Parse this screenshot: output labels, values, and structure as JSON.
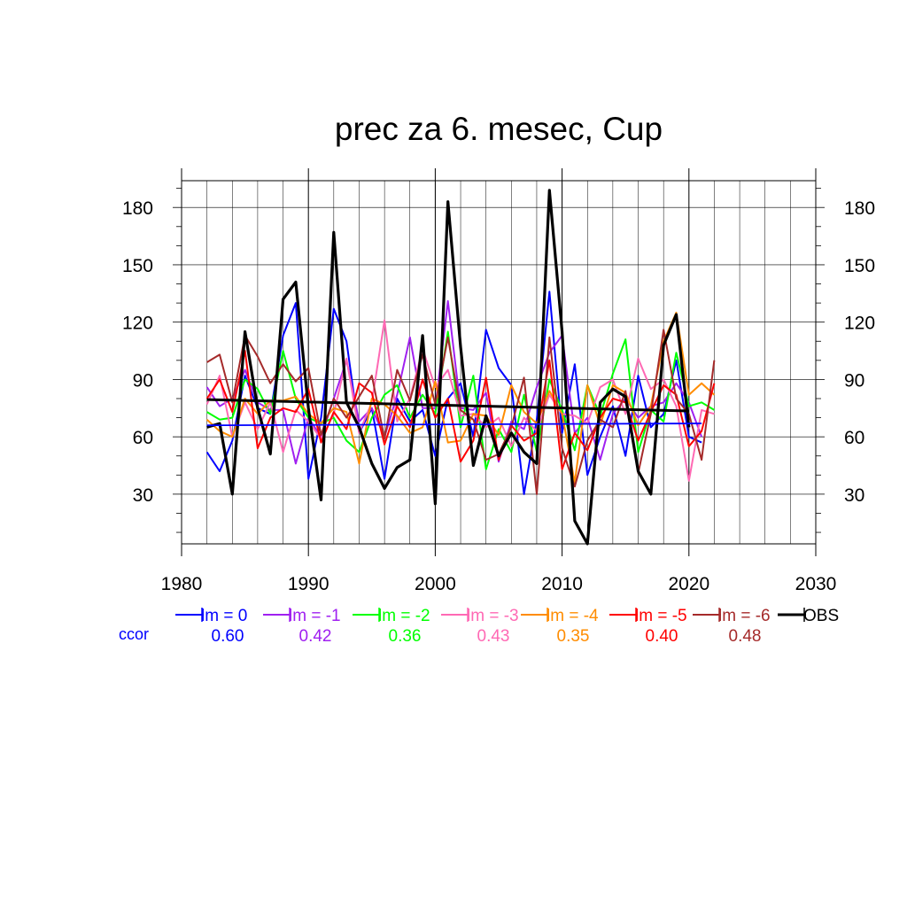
{
  "chart_data": {
    "type": "line",
    "title": "prec za 6. mesec, Cup",
    "xlabel": "",
    "ylabel": "",
    "xlim": [
      1980,
      2030
    ],
    "ylim": [
      4,
      194
    ],
    "x_ticks": [
      1980,
      1990,
      2000,
      2010,
      2020,
      2030
    ],
    "y_ticks": [
      30,
      60,
      90,
      120,
      150,
      180
    ],
    "grid": true,
    "legend_position": "below",
    "ccor_label": "ccor",
    "series": [
      {
        "name": "lm = 0",
        "color": "#0000ff",
        "ccor": "0.60",
        "x": [
          1982,
          1983,
          1984,
          1985,
          1986,
          1987,
          1988,
          1989,
          1990,
          1991,
          1992,
          1993,
          1994,
          1995,
          1996,
          1997,
          1998,
          1999,
          2000,
          2001,
          2002,
          2003,
          2004,
          2005,
          2006,
          2007,
          2008,
          2009,
          2010,
          2011,
          2012,
          2013,
          2014,
          2015,
          2016,
          2017,
          2018,
          2019,
          2020,
          2021
        ],
        "y": [
          52,
          42,
          58,
          92,
          75,
          72,
          113,
          130,
          38,
          70,
          127,
          110,
          62,
          75,
          38,
          80,
          68,
          74,
          50,
          80,
          88,
          60,
          116,
          96,
          87,
          30,
          69,
          136,
          62,
          98,
          40,
          60,
          76,
          50,
          92,
          65,
          72,
          100,
          60,
          57
        ]
      },
      {
        "name": "lm = -1",
        "color": "#a020f0",
        "ccor": "0.42",
        "x": [
          1982,
          1983,
          1984,
          1985,
          1986,
          1987,
          1988,
          1989,
          1990,
          1991,
          1992,
          1993,
          1994,
          1995,
          1996,
          1997,
          1998,
          1999,
          2000,
          2001,
          2002,
          2003,
          2004,
          2005,
          2006,
          2007,
          2008,
          2009,
          2010,
          2011,
          2012,
          2013,
          2014,
          2015,
          2016,
          2017,
          2018,
          2019,
          2020,
          2021
        ],
        "y": [
          86,
          76,
          80,
          95,
          78,
          74,
          74,
          46,
          70,
          60,
          80,
          100,
          68,
          75,
          60,
          82,
          112,
          75,
          75,
          131,
          75,
          74,
          83,
          47,
          68,
          64,
          86,
          104,
          113,
          62,
          70,
          48,
          72,
          80,
          70,
          76,
          78,
          88,
          78,
          60
        ]
      },
      {
        "name": "lm = -2",
        "color": "#00ff00",
        "ccor": "0.36",
        "x": [
          1982,
          1983,
          1984,
          1985,
          1986,
          1987,
          1988,
          1989,
          1990,
          1991,
          1992,
          1993,
          1994,
          1995,
          1996,
          1997,
          1998,
          1999,
          2000,
          2001,
          2002,
          2003,
          2004,
          2005,
          2006,
          2007,
          2008,
          2009,
          2010,
          2011,
          2012,
          2013,
          2014,
          2015,
          2016,
          2017,
          2018,
          2019,
          2020,
          2021,
          2022
        ],
        "y": [
          73,
          69,
          70,
          90,
          85,
          72,
          105,
          80,
          70,
          67,
          70,
          58,
          52,
          70,
          82,
          87,
          70,
          82,
          72,
          115,
          65,
          92,
          43,
          64,
          52,
          82,
          52,
          90,
          74,
          53,
          87,
          71,
          93,
          111,
          52,
          74,
          68,
          104,
          76,
          78,
          74
        ]
      },
      {
        "name": "lm = -3",
        "color": "#ff69b4",
        "ccor": "0.43",
        "x": [
          1982,
          1983,
          1984,
          1985,
          1986,
          1987,
          1988,
          1989,
          1990,
          1991,
          1992,
          1993,
          1994,
          1995,
          1996,
          1997,
          1998,
          1999,
          2000,
          2001,
          2002,
          2003,
          2004,
          2005,
          2006,
          2007,
          2008,
          2009,
          2010,
          2011,
          2012,
          2013,
          2014,
          2015,
          2016,
          2017,
          2018,
          2019,
          2020,
          2021,
          2022
        ],
        "y": [
          77,
          92,
          60,
          78,
          64,
          78,
          52,
          74,
          68,
          59,
          72,
          101,
          62,
          78,
          121,
          68,
          80,
          106,
          86,
          95,
          71,
          72,
          65,
          70,
          55,
          70,
          63,
          82,
          72,
          71,
          67,
          86,
          90,
          72,
          101,
          85,
          90,
          76,
          37,
          74,
          72
        ]
      },
      {
        "name": "lm = -4",
        "color": "#ff8c00",
        "ccor": "0.35",
        "x": [
          1982,
          1983,
          1984,
          1985,
          1986,
          1987,
          1988,
          1989,
          1990,
          1991,
          1992,
          1993,
          1994,
          1995,
          1996,
          1997,
          1998,
          1999,
          2000,
          2001,
          2002,
          2003,
          2004,
          2005,
          2006,
          2007,
          2008,
          2009,
          2010,
          2011,
          2012,
          2013,
          2014,
          2015,
          2016,
          2017,
          2018,
          2019,
          2020,
          2021,
          2022
        ],
        "y": [
          69,
          63,
          60,
          80,
          72,
          79,
          79,
          81,
          72,
          67,
          75,
          73,
          46,
          80,
          77,
          71,
          62,
          65,
          89,
          57,
          58,
          72,
          71,
          61,
          87,
          73,
          67,
          84,
          72,
          36,
          87,
          66,
          87,
          83,
          66,
          76,
          110,
          125,
          82,
          88,
          82
        ]
      },
      {
        "name": "lm = -5",
        "color": "#ff0000",
        "ccor": "0.40",
        "x": [
          1982,
          1983,
          1984,
          1985,
          1986,
          1987,
          1988,
          1989,
          1990,
          1991,
          1992,
          1993,
          1994,
          1995,
          1996,
          1997,
          1998,
          1999,
          2000,
          2001,
          2002,
          2003,
          2004,
          2005,
          2006,
          2007,
          2008,
          2009,
          2010,
          2011,
          2012,
          2013,
          2014,
          2015,
          2016,
          2017,
          2018,
          2019,
          2020,
          2021,
          2022
        ],
        "y": [
          80,
          90,
          73,
          105,
          54,
          70,
          75,
          73,
          85,
          57,
          73,
          64,
          88,
          83,
          56,
          76,
          65,
          90,
          70,
          80,
          47,
          58,
          91,
          48,
          66,
          58,
          62,
          100,
          43,
          62,
          53,
          70,
          80,
          78,
          58,
          73,
          87,
          82,
          55,
          63,
          88
        ]
      },
      {
        "name": "lm = -6",
        "color": "#a52a2a",
        "ccor": "0.48",
        "x": [
          1982,
          1983,
          1984,
          1985,
          1986,
          1987,
          1988,
          1989,
          1990,
          1991,
          1992,
          1993,
          1994,
          1995,
          1996,
          1997,
          1998,
          1999,
          2000,
          2001,
          2002,
          2003,
          2004,
          2005,
          2006,
          2007,
          2008,
          2009,
          2010,
          2011,
          2012,
          2013,
          2014,
          2015,
          2016,
          2017,
          2018,
          2019,
          2020,
          2021,
          2022
        ],
        "y": [
          99,
          103,
          78,
          113,
          102,
          88,
          98,
          89,
          96,
          61,
          80,
          70,
          81,
          92,
          59,
          95,
          79,
          103,
          77,
          112,
          74,
          69,
          48,
          51,
          65,
          91,
          30,
          112,
          54,
          34,
          58,
          69,
          65,
          84,
          41,
          72,
          116,
          80,
          72,
          48,
          100
        ]
      },
      {
        "name": "OBS",
        "color": "#000000",
        "ccor": "",
        "x": [
          1982,
          1983,
          1984,
          1985,
          1986,
          1987,
          1988,
          1989,
          1990,
          1991,
          1992,
          1993,
          1994,
          1995,
          1996,
          1997,
          1998,
          1999,
          2000,
          2001,
          2002,
          2003,
          2004,
          2005,
          2006,
          2007,
          2008,
          2009,
          2010,
          2011,
          2012,
          2013,
          2014,
          2015,
          2016,
          2017,
          2018,
          2019,
          2020
        ],
        "y": [
          65,
          67,
          30,
          115,
          75,
          51,
          132,
          141,
          75,
          27,
          167,
          78,
          65,
          46,
          33,
          44,
          48,
          113,
          25,
          183,
          107,
          45,
          71,
          50,
          62,
          52,
          46,
          189,
          115,
          16,
          4,
          78,
          85,
          81,
          42,
          30,
          108,
          124,
          65
        ]
      }
    ],
    "trend_lines": [
      {
        "color": "#0000ff",
        "x": [
          1982,
          2021
        ],
        "y": [
          66,
          67
        ]
      },
      {
        "color": "#000000",
        "x": [
          1982,
          2020
        ],
        "y": [
          79.5,
          73.5
        ]
      }
    ]
  }
}
